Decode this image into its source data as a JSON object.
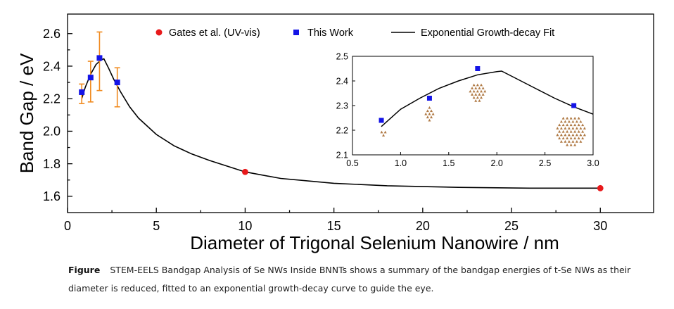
{
  "chart_data": [
    {
      "type": "scatter",
      "xlabel": "Diameter of Trigonal Selenium Nanowire / nm",
      "ylabel": "Band Gap / eV",
      "xlim": [
        0,
        33
      ],
      "ylim": [
        1.5,
        2.72
      ],
      "x_ticks": [
        "0",
        "5",
        "10",
        "15",
        "20",
        "25",
        "30"
      ],
      "x_tick_values": [
        0,
        5,
        10,
        15,
        20,
        25,
        30
      ],
      "y_ticks": [
        "1.6",
        "1.8",
        "2.0",
        "2.2",
        "2.4",
        "2.6"
      ],
      "y_tick_values": [
        1.6,
        1.8,
        2.0,
        2.2,
        2.4,
        2.6
      ],
      "legend": {
        "placement": "top",
        "entries": [
          {
            "label": "Gates et al. (UV-vis)",
            "marker": "circle",
            "color": "#e8191b"
          },
          {
            "label": "This Work",
            "marker": "square",
            "color": "#1414e6"
          },
          {
            "label": "Exponential Growth-decay Fit",
            "marker": "line",
            "color": "#000000"
          }
        ]
      },
      "series": [
        {
          "name": "Gates et al. (UV-vis)",
          "marker": "circle",
          "color": "#e8191b",
          "x": [
            10,
            30
          ],
          "y": [
            1.75,
            1.65
          ]
        },
        {
          "name": "This Work",
          "marker": "square",
          "color": "#1414e6",
          "x": [
            0.8,
            1.3,
            1.8,
            2.8
          ],
          "y": [
            2.24,
            2.33,
            2.45,
            2.3
          ],
          "error_low": [
            2.17,
            2.18,
            2.25,
            2.15
          ],
          "error_high": [
            2.29,
            2.43,
            2.61,
            2.39
          ],
          "error_color": "#f08a1e"
        },
        {
          "name": "Exponential Growth-decay Fit",
          "type": "line",
          "color": "#000000",
          "x": [
            0.8,
            1.0,
            1.3,
            1.6,
            1.9,
            2.05,
            2.3,
            2.6,
            3.0,
            3.5,
            4,
            5,
            6,
            7,
            8,
            10,
            12,
            15,
            18,
            22,
            26,
            30
          ],
          "y": [
            2.2,
            2.27,
            2.35,
            2.41,
            2.44,
            2.445,
            2.39,
            2.32,
            2.24,
            2.15,
            2.08,
            1.98,
            1.91,
            1.86,
            1.82,
            1.75,
            1.71,
            1.68,
            1.665,
            1.655,
            1.65,
            1.65
          ]
        }
      ]
    },
    {
      "type": "scatter",
      "role": "inset",
      "xlim": [
        0.5,
        3.0
      ],
      "ylim": [
        2.1,
        2.5
      ],
      "x_ticks": [
        "0.5",
        "1.0",
        "1.5",
        "2.0",
        "2.5",
        "3.0"
      ],
      "x_tick_values": [
        0.5,
        1.0,
        1.5,
        2.0,
        2.5,
        3.0
      ],
      "y_ticks": [
        "2.1",
        "2.2",
        "2.3",
        "2.4",
        "2.5"
      ],
      "y_tick_values": [
        2.1,
        2.2,
        2.3,
        2.4,
        2.5
      ],
      "series": [
        {
          "name": "This Work",
          "marker": "square",
          "color": "#1414e6",
          "x": [
            0.8,
            1.3,
            1.8,
            2.8
          ],
          "y": [
            2.24,
            2.33,
            2.45,
            2.3
          ]
        },
        {
          "name": "Exponential Growth-decay Fit",
          "type": "line",
          "color": "#000000",
          "x": [
            0.8,
            1.0,
            1.2,
            1.4,
            1.6,
            1.8,
            2.0,
            2.05,
            2.2,
            2.4,
            2.6,
            2.8,
            3.0
          ],
          "y": [
            2.215,
            2.285,
            2.33,
            2.37,
            2.4,
            2.425,
            2.438,
            2.44,
            2.41,
            2.37,
            2.33,
            2.295,
            2.265
          ]
        }
      ],
      "nanowire_cross_sections": [
        {
          "x": 0.8,
          "atoms": 3,
          "color": "#b07a45"
        },
        {
          "x": 1.3,
          "atoms": 9,
          "color": "#b07a45"
        },
        {
          "x": 1.8,
          "atoms": 21,
          "color": "#b07a45"
        },
        {
          "x": 2.8,
          "atoms": 57,
          "color": "#b07a45"
        }
      ]
    }
  ],
  "caption": {
    "label": "Figure",
    "text": "STEM-EELS Bandgap Analysis of Se NWs Inside BNNTs  shows a summary of the bandgap energies of t-Se NWs as their diameter is reduced, fitted to an exponential growth-decay curve to guide the eye."
  }
}
